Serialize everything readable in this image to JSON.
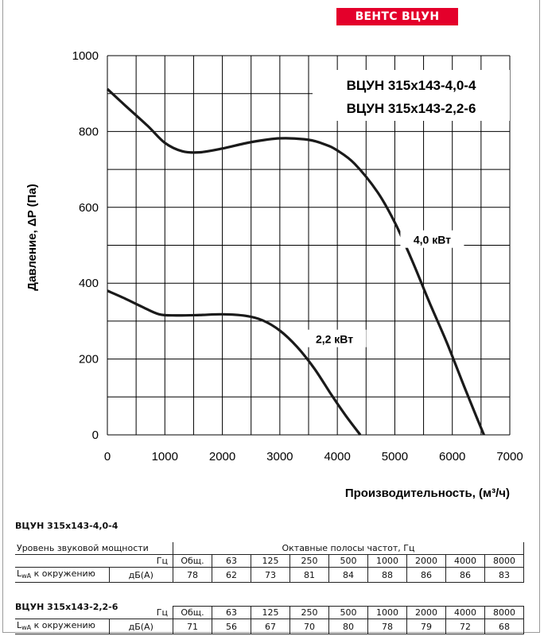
{
  "brand": "ВЕНТС ВЦУН",
  "chart_data": {
    "type": "line",
    "title": "",
    "title_lines": [
      "ВЦУН 315x143-4,0-4",
      "ВЦУН 315x143-2,2-6"
    ],
    "ylabel": "Давление, ΔP (Па)",
    "xlabel": "Производительность, (м³/ч)",
    "xlim": [
      0,
      7000
    ],
    "ylim": [
      0,
      1000
    ],
    "xticks": [
      0,
      1000,
      2000,
      3000,
      4000,
      5000,
      6000,
      7000
    ],
    "yticks": [
      0,
      200,
      400,
      600,
      800,
      1000
    ],
    "grid": true,
    "series": [
      {
        "name": "4,0 кВт",
        "x": [
          0,
          300,
          700,
          1000,
          1300,
          1600,
          2000,
          2500,
          3000,
          3500,
          3800,
          4000,
          4300,
          4700,
          5000,
          5300,
          5600,
          5900,
          6200,
          6400,
          6550
        ],
        "y": [
          912,
          870,
          815,
          770,
          748,
          745,
          755,
          772,
          782,
          778,
          765,
          750,
          715,
          640,
          560,
          460,
          350,
          245,
          130,
          55,
          0
        ]
      },
      {
        "name": "2,2 кВт",
        "x": [
          0,
          300,
          600,
          900,
          1200,
          1600,
          2000,
          2400,
          2700,
          3000,
          3300,
          3600,
          3900,
          4150,
          4400
        ],
        "y": [
          380,
          360,
          338,
          318,
          315,
          316,
          318,
          314,
          302,
          275,
          232,
          175,
          105,
          50,
          0
        ]
      }
    ]
  },
  "tables": [
    {
      "title": "ВЦУН 315x143-4,0-4",
      "header_left": "Уровень звуковой мощности",
      "header_right": "Октавные полосы частот, Гц",
      "hz_label": "Гц",
      "columns": [
        "Общ.",
        "63",
        "125",
        "250",
        "500",
        "1000",
        "2000",
        "4000",
        "8000"
      ],
      "row_label": "L",
      "row_label_sub": "wA",
      "row_label_rest": " к окружению",
      "row_unit": "дБ(А)",
      "values": [
        "78",
        "62",
        "73",
        "81",
        "84",
        "88",
        "86",
        "86",
        "83"
      ]
    },
    {
      "title": "ВЦУН 315x143-2,2-6",
      "hz_label": "Гц",
      "columns": [
        "Общ.",
        "63",
        "125",
        "250",
        "500",
        "1000",
        "2000",
        "4000",
        "8000"
      ],
      "row_label": "L",
      "row_label_sub": "wA",
      "row_label_rest": " к окружению",
      "row_unit": "дБ(А)",
      "values": [
        "71",
        "56",
        "67",
        "70",
        "80",
        "78",
        "79",
        "72",
        "68"
      ]
    }
  ]
}
